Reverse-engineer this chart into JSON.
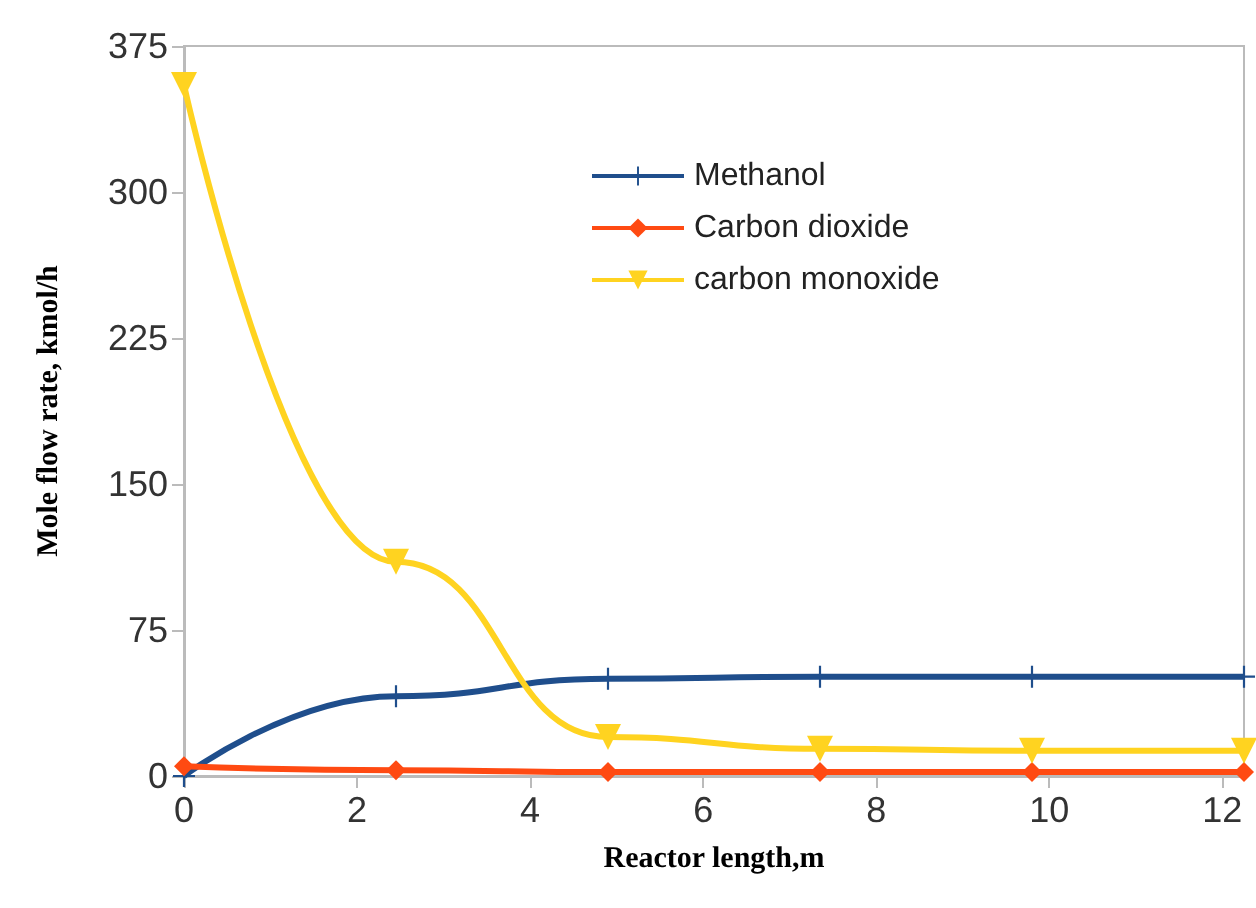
{
  "chart_data": {
    "type": "line",
    "xlabel": "Reactor length,m",
    "ylabel": "Mole flow rate, kmol/h",
    "x": [
      0,
      2.45,
      4.9,
      7.35,
      9.8,
      12.25
    ],
    "series": [
      {
        "name": "Methanol",
        "color": "#1f4e8c",
        "marker": "cross",
        "values": [
          0,
          41,
          50,
          51,
          51,
          51
        ]
      },
      {
        "name": "Carbon dioxide",
        "color": "#ff4a12",
        "marker": "diamond",
        "values": [
          5,
          3,
          2,
          2,
          2,
          2
        ]
      },
      {
        "name": "carbon monoxide",
        "color": "#ffd320",
        "marker": "triangle",
        "values": [
          355,
          110,
          20,
          14,
          13,
          13
        ]
      }
    ],
    "xlim": [
      0,
      12.25
    ],
    "xticks": [
      0,
      2,
      4,
      6,
      8,
      10,
      12
    ],
    "ylim": [
      0,
      375
    ],
    "yticks": [
      0,
      75,
      150,
      225,
      300,
      375
    ],
    "grid": false,
    "legend": "top",
    "line_style": "solid"
  }
}
